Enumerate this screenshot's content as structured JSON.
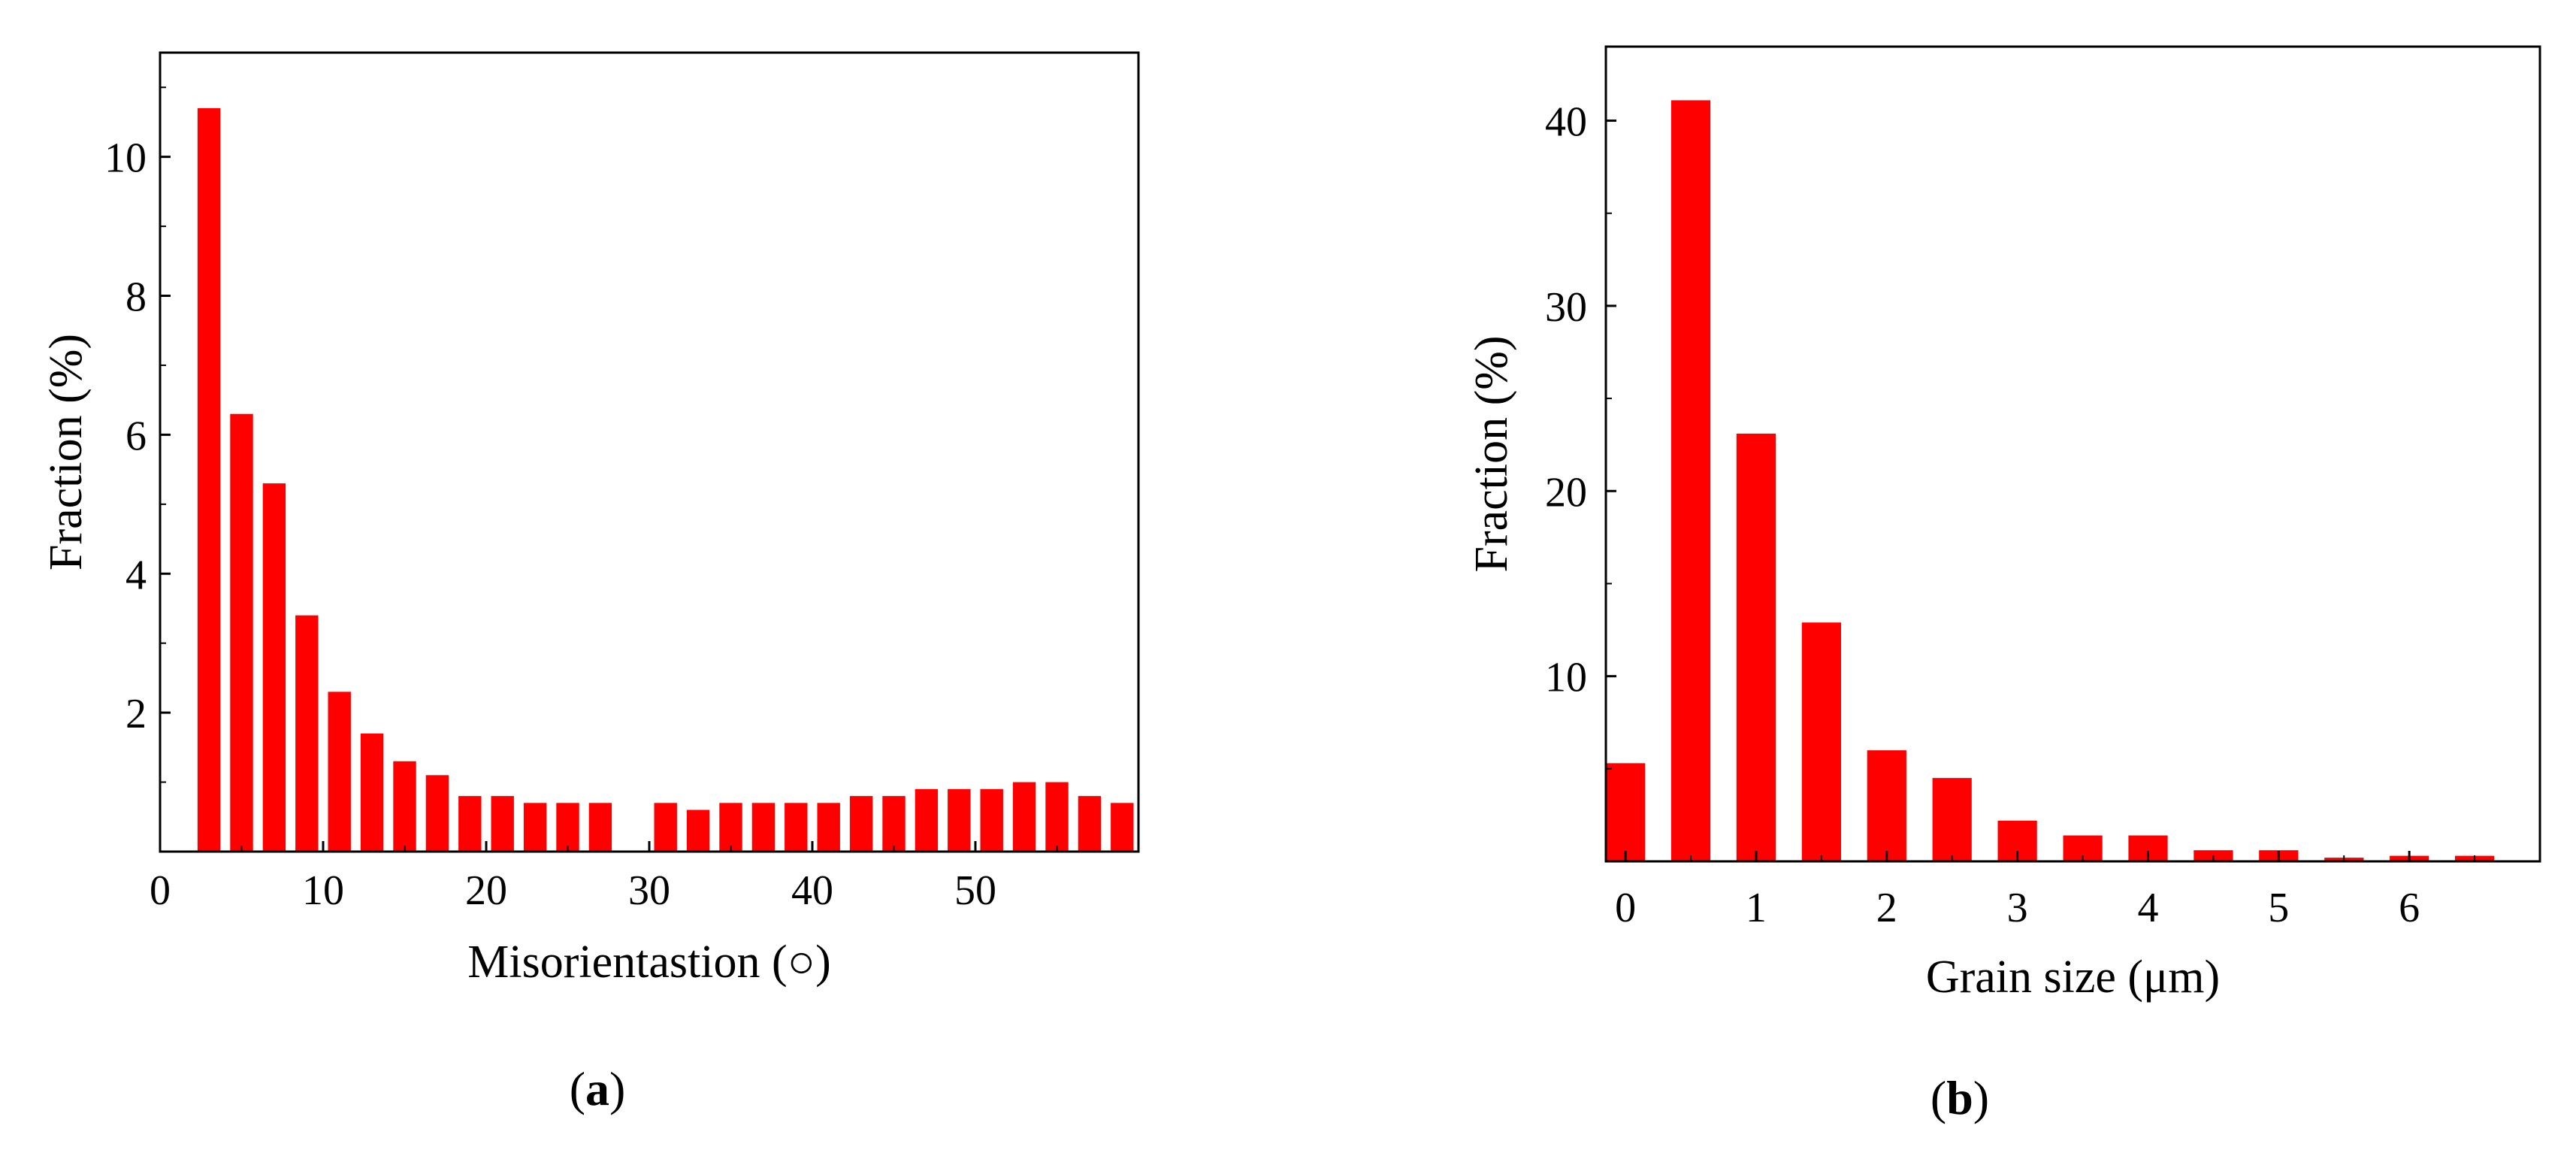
{
  "colors": {
    "bar": "#ff0000",
    "axis": "#000000",
    "background": "#ffffff"
  },
  "panels": [
    {
      "id": "a",
      "label_open": "(",
      "label_letter": "a",
      "label_close": ")"
    },
    {
      "id": "b",
      "label_open": "(",
      "label_letter": "b",
      "label_close": ")"
    }
  ],
  "chart_data": [
    {
      "type": "bar",
      "panel": "a",
      "xlabel": "Misorientastion (○)",
      "ylabel": "Fraction (%)",
      "xlim": [
        0,
        60
      ],
      "ylim": [
        0,
        11.5
      ],
      "xticks": [
        0,
        10,
        20,
        30,
        40,
        50
      ],
      "yticks": [
        2,
        4,
        6,
        8,
        10
      ],
      "bar_width": 1.4,
      "grid": false,
      "x": [
        3,
        5,
        7,
        9,
        11,
        13,
        15,
        17,
        19,
        21,
        23,
        25,
        27,
        29,
        31,
        33,
        35,
        37,
        39,
        41,
        43,
        45,
        47,
        49,
        51,
        53,
        55,
        57,
        59
      ],
      "values": [
        10.7,
        6.3,
        5.3,
        3.4,
        2.3,
        1.7,
        1.3,
        1.1,
        0.8,
        0.8,
        0.7,
        0.7,
        0.7,
        0.0,
        0.7,
        0.6,
        0.7,
        0.7,
        0.7,
        0.7,
        0.8,
        0.8,
        0.9,
        0.9,
        0.9,
        1.0,
        1.0,
        0.8,
        0.7
      ]
    },
    {
      "type": "bar",
      "panel": "b",
      "xlabel": "Grain size (μm)",
      "ylabel": "Fraction  (%)",
      "xlim": [
        -0.15,
        7.0
      ],
      "ylim": [
        0,
        44
      ],
      "xticks": [
        0,
        1,
        2,
        3,
        4,
        5,
        6
      ],
      "yticks": [
        10,
        20,
        30,
        40
      ],
      "bar_width": 0.3,
      "grid": false,
      "x": [
        0,
        0.5,
        1.0,
        1.5,
        2.0,
        2.5,
        3.0,
        3.5,
        4.0,
        4.5,
        5.0,
        5.5,
        6.0,
        6.5
      ],
      "values": [
        5.3,
        41.1,
        23.1,
        12.9,
        6.0,
        4.5,
        2.2,
        1.4,
        1.4,
        0.6,
        0.6,
        0.2,
        0.3,
        0.3
      ]
    }
  ]
}
